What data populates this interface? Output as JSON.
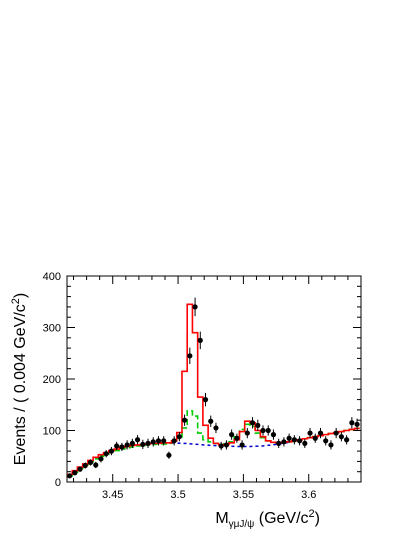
{
  "chart_data": {
    "type": "scatter",
    "title": "",
    "ylabel": {
      "main": "Events / ( 0.004 GeV/c",
      "sup": "2",
      "tail": ")"
    },
    "xlabel": {
      "main": "M",
      "sub": "γμJ/ψ",
      "unit": " (GeV/c",
      "sup": "2",
      "tail": ")"
    },
    "xlim": [
      3.415,
      3.64
    ],
    "ylim": [
      0,
      400
    ],
    "x_ticks": [
      3.45,
      3.5,
      3.55,
      3.6
    ],
    "x_tick_labels": [
      "3.45",
      "3.5",
      "3.55",
      "3.6"
    ],
    "y_ticks": [
      0,
      100,
      200,
      300,
      400
    ],
    "y_tick_labels": [
      "0",
      "100",
      "200",
      "300",
      "400"
    ],
    "grid": false,
    "legend": "none",
    "bin_width": 0.004,
    "series": [
      {
        "kind": "data-points",
        "color": "#000000",
        "x": [
          3.417,
          3.421,
          3.425,
          3.429,
          3.433,
          3.437,
          3.441,
          3.445,
          3.449,
          3.453,
          3.457,
          3.461,
          3.465,
          3.469,
          3.473,
          3.477,
          3.481,
          3.485,
          3.489,
          3.493,
          3.497,
          3.501,
          3.505,
          3.509,
          3.513,
          3.517,
          3.521,
          3.525,
          3.529,
          3.533,
          3.537,
          3.541,
          3.545,
          3.549,
          3.553,
          3.557,
          3.561,
          3.565,
          3.569,
          3.573,
          3.577,
          3.581,
          3.585,
          3.589,
          3.593,
          3.597,
          3.601,
          3.605,
          3.609,
          3.613,
          3.617,
          3.621,
          3.625,
          3.629,
          3.633,
          3.637
        ],
        "y": [
          12,
          18,
          25,
          32,
          38,
          33,
          45,
          55,
          60,
          70,
          68,
          72,
          75,
          82,
          73,
          75,
          78,
          80,
          80,
          52,
          80,
          88,
          120,
          245,
          340,
          275,
          160,
          118,
          105,
          70,
          72,
          92,
          85,
          72,
          95,
          115,
          110,
          100,
          100,
          92,
          75,
          78,
          85,
          82,
          80,
          75,
          95,
          85,
          95,
          80,
          72,
          95,
          88,
          82,
          115,
          112
        ],
        "err": [
          4,
          4,
          5,
          6,
          6,
          6,
          7,
          7,
          8,
          8,
          8,
          9,
          9,
          9,
          9,
          9,
          9,
          9,
          9,
          7,
          9,
          9,
          11,
          16,
          18,
          17,
          13,
          11,
          10,
          8,
          9,
          10,
          9,
          9,
          10,
          11,
          11,
          10,
          10,
          10,
          9,
          9,
          9,
          9,
          9,
          9,
          10,
          9,
          10,
          9,
          9,
          10,
          9,
          9,
          11,
          11
        ]
      },
      {
        "kind": "total-fit",
        "color": "#ff0000",
        "edges": [
          3.415,
          3.419,
          3.423,
          3.427,
          3.431,
          3.435,
          3.439,
          3.443,
          3.447,
          3.451,
          3.455,
          3.459,
          3.463,
          3.467,
          3.471,
          3.475,
          3.479,
          3.483,
          3.487,
          3.491,
          3.495,
          3.499,
          3.503,
          3.507,
          3.511,
          3.515,
          3.519,
          3.523,
          3.527,
          3.531,
          3.535,
          3.539,
          3.543,
          3.547,
          3.551,
          3.555,
          3.559,
          3.563,
          3.567,
          3.571,
          3.575,
          3.579,
          3.583,
          3.587,
          3.591,
          3.595,
          3.599,
          3.603,
          3.607,
          3.611,
          3.615,
          3.619,
          3.623,
          3.627,
          3.631,
          3.635,
          3.639
        ],
        "values": [
          15,
          22,
          29,
          35,
          42,
          48,
          53,
          57,
          61,
          64,
          67,
          69,
          71,
          72,
          73,
          74,
          75,
          75,
          76,
          76,
          80,
          96,
          215,
          345,
          290,
          165,
          110,
          85,
          75,
          72,
          73,
          76,
          82,
          98,
          118,
          115,
          100,
          88,
          80,
          77,
          76,
          77,
          78,
          80,
          82,
          84,
          86,
          88,
          90,
          92,
          94,
          96,
          98,
          100,
          102,
          104
        ]
      },
      {
        "kind": "component",
        "color": "#00cc00",
        "edges": [
          3.415,
          3.419,
          3.423,
          3.427,
          3.431,
          3.435,
          3.439,
          3.443,
          3.447,
          3.451,
          3.455,
          3.459,
          3.463,
          3.467,
          3.471,
          3.475,
          3.479,
          3.483,
          3.487,
          3.491,
          3.495,
          3.499,
          3.503,
          3.507,
          3.511,
          3.515,
          3.519,
          3.523,
          3.527,
          3.531,
          3.535,
          3.539,
          3.543,
          3.547,
          3.551,
          3.555,
          3.559,
          3.563,
          3.567,
          3.571,
          3.575,
          3.579,
          3.583,
          3.587,
          3.591,
          3.595,
          3.599,
          3.603,
          3.607,
          3.611,
          3.615,
          3.619,
          3.623,
          3.627,
          3.631,
          3.635,
          3.639
        ],
        "values": [
          12,
          19,
          26,
          33,
          39,
          45,
          50,
          54,
          58,
          61,
          64,
          66,
          68,
          70,
          71,
          72,
          73,
          74,
          74,
          75,
          77,
          85,
          105,
          138,
          128,
          95,
          82,
          78,
          75,
          73,
          74,
          78,
          88,
          102,
          112,
          108,
          95,
          86,
          80,
          77,
          76,
          77,
          78,
          80,
          82,
          84,
          86,
          88,
          90,
          92,
          94,
          96,
          98,
          100,
          102,
          104
        ]
      },
      {
        "kind": "background",
        "color": "#0000cc",
        "x": [
          3.495,
          3.505,
          3.515,
          3.525,
          3.535,
          3.545,
          3.555,
          3.565,
          3.575,
          3.585
        ],
        "y": [
          76,
          75,
          73,
          71,
          70,
          69,
          69,
          70,
          73,
          77
        ]
      }
    ]
  }
}
